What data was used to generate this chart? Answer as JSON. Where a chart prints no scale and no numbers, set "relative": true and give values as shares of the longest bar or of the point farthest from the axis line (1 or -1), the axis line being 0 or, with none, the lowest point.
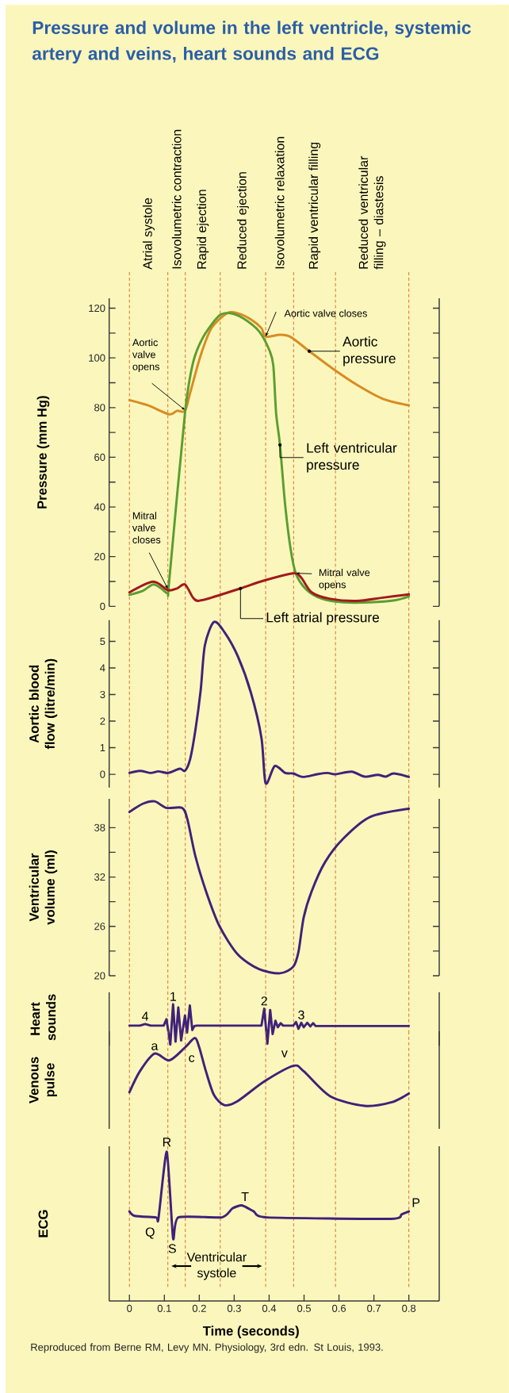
{
  "chart_data": [
    {
      "type": "line",
      "title": "Pressure and volume in the left ventricle, systemic artery and veins, heart sounds and ECG",
      "ylabel": "Pressure (mm Hg)",
      "xlim": [
        -0.058,
        0.887
      ],
      "ylim": [
        0,
        124
      ],
      "yticks": [
        0,
        {
          "value": 10,
          "label": null
        },
        20,
        {
          "value": 30,
          "label": null
        },
        40,
        {
          "value": 50,
          "label": null
        },
        60,
        {
          "value": 70,
          "label": null
        },
        80,
        {
          "value": 90,
          "label": null
        },
        100,
        {
          "value": 110,
          "label": null
        },
        120
      ],
      "tick_labels": "y",
      "series": [
        {
          "name": "Aortic pressure",
          "color": "#d98b22",
          "x": [
            0,
            0.053,
            0.114,
            0.136,
            0.159,
            0.174,
            0.204,
            0.235,
            0.28,
            0.31,
            0.348,
            0.378,
            0.39,
            0.431,
            0.462,
            0.515,
            0.583,
            0.651,
            0.726,
            0.8
          ],
          "values": [
            83,
            80.9,
            77.3,
            78.7,
            78.7,
            86,
            101,
            112,
            118,
            118,
            115.5,
            112,
            108.6,
            109.3,
            108.4,
            102.7,
            95.6,
            89.2,
            83.5,
            80.9
          ]
        },
        {
          "name": "Left ventricular pressure",
          "color": "#5b9e31",
          "x": [
            0,
            0.038,
            0.068,
            0.091,
            0.11,
            0.114,
            0.159,
            0.182,
            0.212,
            0.257,
            0.288,
            0.325,
            0.371,
            0.401,
            0.412,
            0.42,
            0.431,
            0.446,
            0.462,
            0.477,
            0.507,
            0.552,
            0.613,
            0.689,
            0.76,
            0.8
          ],
          "values": [
            4.6,
            6.2,
            8.8,
            7.2,
            5.3,
            10.4,
            77.7,
            98,
            108.6,
            117,
            118,
            116,
            110.7,
            103,
            96.9,
            77.7,
            65,
            40.6,
            22.6,
            13,
            6.7,
            3,
            1.6,
            1.6,
            2.4,
            4
          ]
        },
        {
          "name": "Left atrial pressure",
          "color": "#a3191c",
          "x": [
            0,
            0.068,
            0.11,
            0.136,
            0.159,
            0.182,
            0.197,
            0.235,
            0.318,
            0.386,
            0.469,
            0.492,
            0.522,
            0.575,
            0.651,
            0.726,
            0.8
          ],
          "values": [
            5.6,
            9.9,
            6.5,
            7.2,
            8.8,
            3.5,
            2.2,
            3.5,
            7.2,
            10.4,
            13.3,
            11.5,
            5.6,
            3,
            2.2,
            3.5,
            4.8
          ]
        }
      ],
      "annotations": [
        {
          "text": "Aortic valve opens",
          "x": 0.159,
          "y": 79
        },
        {
          "text": "Aortic valve closes",
          "x": 0.39,
          "y": 108.6
        },
        {
          "text": "Mitral valve closes",
          "x": 0.11,
          "y": 7
        },
        {
          "text": "Mitral valve opens",
          "x": 0.477,
          "y": 13.3
        },
        "Atrial systole",
        "Isovolumetric contraction",
        "Rapid ejection",
        "Reduced ejection",
        "Isovolumetric relaxation",
        "Rapid ventricular filling",
        "Reduced ventricular filling – diastesis"
      ],
      "legend": "right",
      "ref_lines": [
        {
          "axis": "x",
          "value": 0,
          "color": "#e06f2e",
          "line_style": "dashed"
        },
        {
          "axis": "x",
          "value": 0.11,
          "color": "#e06f2e",
          "line_style": "dashed"
        },
        {
          "axis": "x",
          "value": 0.16,
          "color": "#e06f2e",
          "line_style": "dashed"
        },
        {
          "axis": "x",
          "value": 0.26,
          "color": "#e06f2e",
          "line_style": "dashed"
        },
        {
          "axis": "x",
          "value": 0.39,
          "color": "#e06f2e",
          "line_style": "dashed"
        },
        {
          "axis": "x",
          "value": 0.47,
          "color": "#e06f2e",
          "line_style": "dashed"
        },
        {
          "axis": "x",
          "value": 0.59,
          "color": "#e06f2e",
          "line_style": "dashed"
        },
        {
          "axis": "x",
          "value": 0.8,
          "color": "#e06f2e",
          "line_style": "dashed"
        }
      ]
    },
    {
      "type": "line",
      "ylabel": "Aortic blood flow (litre/min)",
      "xlim": [
        -0.058,
        0.887
      ],
      "ylim": [
        -0.5,
        5.8
      ],
      "yticks": [
        0,
        1,
        2,
        3,
        4,
        5
      ],
      "tick_labels": "y",
      "series": [
        {
          "color": "#40217a",
          "x": [
            0,
            0.03,
            0.061,
            0.083,
            0.111,
            0.144,
            0.159,
            0.174,
            0.189,
            0.204,
            0.216,
            0.242,
            0.272,
            0.31,
            0.348,
            0.378,
            0.39,
            0.416,
            0.446,
            0.469,
            0.496,
            0.537,
            0.567,
            0.59,
            0.636,
            0.674,
            0.711,
            0.734,
            0.757,
            0.8
          ],
          "values": [
            0.05,
            0.13,
            0.05,
            0.11,
            0.05,
            0.21,
            0.13,
            0.58,
            1.67,
            3.16,
            4.85,
            5.73,
            5.35,
            4.45,
            3.06,
            1.37,
            -0.34,
            0.31,
            0.05,
            0.03,
            -0.1,
            0,
            0.05,
            0,
            0.1,
            -0.09,
            -0.02,
            -0.09,
            0.03,
            -0.1
          ]
        }
      ],
      "ref_lines": [
        {
          "axis": "x",
          "value": 0,
          "color": "#e06f2e",
          "line_style": "dashed"
        },
        {
          "axis": "x",
          "value": 0.11,
          "color": "#e06f2e",
          "line_style": "dashed"
        },
        {
          "axis": "x",
          "value": 0.16,
          "color": "#e06f2e",
          "line_style": "dashed"
        },
        {
          "axis": "x",
          "value": 0.26,
          "color": "#e06f2e",
          "line_style": "dashed"
        },
        {
          "axis": "x",
          "value": 0.39,
          "color": "#e06f2e",
          "line_style": "dashed"
        },
        {
          "axis": "x",
          "value": 0.47,
          "color": "#e06f2e",
          "line_style": "dashed"
        },
        {
          "axis": "x",
          "value": 0.59,
          "color": "#e06f2e",
          "line_style": "dashed"
        },
        {
          "axis": "x",
          "value": 0.8,
          "color": "#e06f2e",
          "line_style": "dashed"
        }
      ]
    },
    {
      "type": "line",
      "ylabel": "Ventricular volume (ml)",
      "xlim": [
        -0.058,
        0.887
      ],
      "ylim": [
        20,
        41.5
      ],
      "yticks": [
        20,
        {
          "value": 23,
          "label": null
        },
        26,
        {
          "value": 29,
          "label": null
        },
        32,
        {
          "value": 35,
          "label": null
        },
        38
      ],
      "tick_labels": "y",
      "series": [
        {
          "color": "#40217a",
          "x": [
            0,
            0.038,
            0.072,
            0.106,
            0.151,
            0.166,
            0.189,
            0.219,
            0.257,
            0.31,
            0.371,
            0.431,
            0.469,
            0.484,
            0.499,
            0.522,
            0.56,
            0.613,
            0.689,
            0.8
          ],
          "values": [
            39.9,
            40.9,
            41.2,
            40.4,
            40.4,
            39,
            34.5,
            30.3,
            26.1,
            22.6,
            20.8,
            20.3,
            21.1,
            22.9,
            27.1,
            30.3,
            33.8,
            36.7,
            39.3,
            40.3
          ]
        }
      ],
      "ref_lines": [
        {
          "axis": "x",
          "value": 0,
          "color": "#e06f2e",
          "line_style": "dashed"
        },
        {
          "axis": "x",
          "value": 0.11,
          "color": "#e06f2e",
          "line_style": "dashed"
        },
        {
          "axis": "x",
          "value": 0.16,
          "color": "#e06f2e",
          "line_style": "dashed"
        },
        {
          "axis": "x",
          "value": 0.26,
          "color": "#e06f2e",
          "line_style": "dashed"
        },
        {
          "axis": "x",
          "value": 0.39,
          "color": "#e06f2e",
          "line_style": "dashed"
        },
        {
          "axis": "x",
          "value": 0.47,
          "color": "#e06f2e",
          "line_style": "dashed"
        },
        {
          "axis": "x",
          "value": 0.59,
          "color": "#e06f2e",
          "line_style": "dashed"
        },
        {
          "axis": "x",
          "value": 0.8,
          "color": "#e06f2e",
          "line_style": "dashed"
        }
      ]
    },
    {
      "type": "line",
      "relative": true,
      "ylabel": "Heart sounds",
      "xlim": [
        -0.058,
        0.887
      ],
      "tick_labels": false,
      "series": [
        {
          "color": "#40217a",
          "x": [
            0,
            0.03,
            0.045,
            0.061,
            0.098,
            0.106,
            0.117,
            0.125,
            0.132,
            0.14,
            0.148,
            0.159,
            0.165,
            0.173,
            0.18,
            0.186,
            0.193,
            0.378,
            0.386,
            0.395,
            0.403,
            0.41,
            0.418,
            0.425,
            0.433,
            0.44,
            0.469,
            0.477,
            0.484,
            0.492,
            0.499,
            0.509,
            0.518,
            0.526,
            0.533,
            0.8
          ],
          "values": [
            0.47,
            0.47,
            0.51,
            0.47,
            0.47,
            0.63,
            0,
            1,
            0.07,
            0.92,
            0.1,
            0.72,
            0.3,
            0.97,
            0.36,
            0.46,
            0.47,
            0.47,
            0.89,
            0.02,
            0.86,
            0.26,
            0.59,
            0.43,
            0.53,
            0.47,
            0.47,
            0.56,
            0.39,
            0.54,
            0.43,
            0.54,
            0.45,
            0.53,
            0.46,
            0.46
          ]
        }
      ],
      "annotations": [
        {
          "text": "4",
          "x": 0.045,
          "y": 0.51
        },
        {
          "text": "1",
          "x": 0.125,
          "y": 1
        },
        {
          "text": "2",
          "x": 0.386,
          "y": 0.89
        },
        {
          "text": "3",
          "x": 0.492,
          "y": 0.54
        }
      ],
      "ref_lines": [
        {
          "axis": "x",
          "value": 0,
          "color": "#e06f2e",
          "line_style": "dashed"
        },
        {
          "axis": "x",
          "value": 0.11,
          "color": "#e06f2e",
          "line_style": "dashed"
        },
        {
          "axis": "x",
          "value": 0.16,
          "color": "#e06f2e",
          "line_style": "dashed"
        },
        {
          "axis": "x",
          "value": 0.26,
          "color": "#e06f2e",
          "line_style": "dashed"
        },
        {
          "axis": "x",
          "value": 0.39,
          "color": "#e06f2e",
          "line_style": "dashed"
        },
        {
          "axis": "x",
          "value": 0.47,
          "color": "#e06f2e",
          "line_style": "dashed"
        },
        {
          "axis": "x",
          "value": 0.59,
          "color": "#e06f2e",
          "line_style": "dashed"
        },
        {
          "axis": "x",
          "value": 0.8,
          "color": "#e06f2e",
          "line_style": "dashed"
        }
      ]
    },
    {
      "type": "line",
      "relative": true,
      "ylabel": "Venous pulse",
      "xlim": [
        -0.058,
        0.887
      ],
      "tick_labels": false,
      "series": [
        {
          "color": "#40217a",
          "x": [
            0,
            0.03,
            0.072,
            0.114,
            0.159,
            0.187,
            0.2,
            0.219,
            0.242,
            0.272,
            0.31,
            0.386,
            0.469,
            0.499,
            0.575,
            0.673,
            0.749,
            0.8
          ],
          "values": [
            0.2,
            0.51,
            0.77,
            0.67,
            0.86,
            1,
            0.86,
            0.51,
            0.16,
            0.01,
            0.07,
            0.36,
            0.59,
            0.51,
            0.14,
            0,
            0.05,
            0.18
          ]
        }
      ],
      "annotations": [
        {
          "text": "a",
          "x": 0.072,
          "y": 0.77
        },
        {
          "text": "c",
          "x": 0.187,
          "y": 1
        },
        {
          "text": "v",
          "x": 0.469,
          "y": 0.59
        }
      ],
      "ref_lines": [
        {
          "axis": "x",
          "value": 0,
          "color": "#e06f2e",
          "line_style": "dashed"
        },
        {
          "axis": "x",
          "value": 0.11,
          "color": "#e06f2e",
          "line_style": "dashed"
        },
        {
          "axis": "x",
          "value": 0.16,
          "color": "#e06f2e",
          "line_style": "dashed"
        },
        {
          "axis": "x",
          "value": 0.26,
          "color": "#e06f2e",
          "line_style": "dashed"
        },
        {
          "axis": "x",
          "value": 0.39,
          "color": "#e06f2e",
          "line_style": "dashed"
        },
        {
          "axis": "x",
          "value": 0.47,
          "color": "#e06f2e",
          "line_style": "dashed"
        },
        {
          "axis": "x",
          "value": 0.59,
          "color": "#e06f2e",
          "line_style": "dashed"
        },
        {
          "axis": "x",
          "value": 0.8,
          "color": "#e06f2e",
          "line_style": "dashed"
        }
      ]
    },
    {
      "type": "line",
      "relative": true,
      "ylabel": "ECG",
      "xlabel": "Time (seconds)",
      "xlim": [
        -0.058,
        0.887
      ],
      "xticks": [
        0,
        0.1,
        0.2,
        0.3,
        0.4,
        0.5,
        0.6,
        0.7,
        0.8
      ],
      "tick_labels": "x",
      "series": [
        {
          "color": "#40217a",
          "x": [
            0,
            0.015,
            0.076,
            0.083,
            0.107,
            0.125,
            0.14,
            0.265,
            0.295,
            0.322,
            0.356,
            0.393,
            0.749,
            0.779,
            0.8
          ],
          "values": [
            0.6,
            0.57,
            0.56,
            0.55,
            1,
            0.42,
            0.56,
            0.56,
            0.62,
            0.64,
            0.6,
            0.56,
            0.55,
            0.58,
            0.6
          ]
        }
      ],
      "annotations": [
        {
          "text": "R",
          "x": 0.107,
          "y": 1
        },
        {
          "text": "Q",
          "x": 0.083,
          "y": 0.55
        },
        {
          "text": "S",
          "x": 0.125,
          "y": 0.42
        },
        {
          "text": "T",
          "x": 0.322,
          "y": 0.64
        },
        {
          "text": "P",
          "x": 0.8,
          "y": 0.6
        },
        "Ventricular systole",
        "Reproduced from Berne RM, Levy MN. Physiology, 3rd edn. St Louis, 1993."
      ],
      "ref_lines": [
        {
          "axis": "x",
          "value": 0,
          "color": "#e06f2e",
          "line_style": "dashed"
        },
        {
          "axis": "x",
          "value": 0.11,
          "color": "#e06f2e",
          "line_style": "dashed"
        },
        {
          "axis": "x",
          "value": 0.16,
          "color": "#e06f2e",
          "line_style": "dashed"
        },
        {
          "axis": "x",
          "value": 0.26,
          "color": "#e06f2e",
          "line_style": "dashed"
        },
        {
          "axis": "x",
          "value": 0.39,
          "color": "#e06f2e",
          "line_style": "dashed"
        },
        {
          "axis": "x",
          "value": 0.47,
          "color": "#e06f2e",
          "line_style": "dashed"
        },
        {
          "axis": "x",
          "value": 0.59,
          "color": "#e06f2e",
          "line_style": "dashed"
        },
        {
          "axis": "x",
          "value": 0.8,
          "color": "#e06f2e",
          "line_style": "dashed"
        }
      ]
    }
  ]
}
